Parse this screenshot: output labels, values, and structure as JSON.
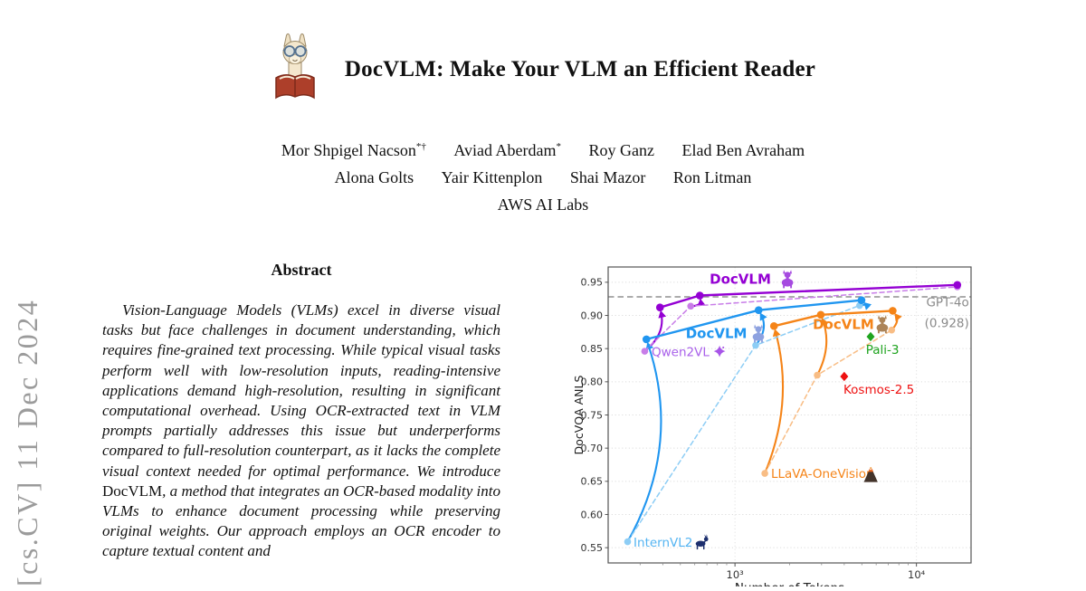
{
  "stamp": {
    "text": "[cs.CV] 11 Dec 2024"
  },
  "header": {
    "title": "DocVLM: Make Your VLM an Efficient Reader",
    "icon": "llama-reading-book"
  },
  "authors": {
    "line1": [
      {
        "name": "Mor Shpigel Nacson",
        "sup": "*†"
      },
      {
        "name": "Aviad Aberdam",
        "sup": "*"
      },
      {
        "name": "Roy Ganz",
        "sup": ""
      },
      {
        "name": "Elad Ben Avraham",
        "sup": ""
      }
    ],
    "line2": [
      {
        "name": "Alona Golts"
      },
      {
        "name": "Yair Kittenplon"
      },
      {
        "name": "Shai Mazor"
      },
      {
        "name": "Ron Litman"
      }
    ],
    "affiliation": "AWS AI Labs"
  },
  "abstract": {
    "heading": "Abstract",
    "body_pre": "Vision-Language Models (VLMs) excel in diverse visual tasks but face challenges in document understanding, which requires fine-grained text processing. While typical visual tasks perform well with low-resolution inputs, reading-intensive applications demand high-resolution, resulting in significant computational overhead. Using OCR-extracted text in VLM prompts partially addresses this issue but underperforms compared to full-resolution counterpart, as it lacks the complete visual context needed for optimal performance. We introduce ",
    "docvlm_word": "DocVLM",
    "body_post": ", a method that integrates an OCR-based modality into VLMs to enhance document processing while preserving original weights. Our approach employs an OCR encoder to capture textual content and"
  },
  "chart_data": {
    "type": "line",
    "xlabel": "Number of Tokens",
    "ylabel": "DocVQA ANLS",
    "xscale": "log",
    "xlim": [
      200,
      20000
    ],
    "ylim": [
      0.527,
      0.973
    ],
    "yticks": [
      0.55,
      0.6,
      0.65,
      0.7,
      0.75,
      0.8,
      0.85,
      0.9,
      0.95
    ],
    "xticks": [
      {
        "v": 1000,
        "label": "10³"
      },
      {
        "v": 10000,
        "label": "10⁴"
      }
    ],
    "minor_xticks": [
      300,
      400,
      500,
      600,
      700,
      800,
      900,
      2000,
      3000,
      4000,
      5000,
      6000,
      7000,
      8000,
      9000
    ],
    "grid": true,
    "hline": {
      "y": 0.928,
      "color": "#909090"
    },
    "series": [
      {
        "name": "Qwen2VL",
        "color": "#c87de8",
        "style": "dashed",
        "x": [
          318,
          570,
          16800
        ],
        "y": [
          0.846,
          0.914,
          0.943
        ]
      },
      {
        "name": "InternVL2",
        "color": "#8dcdf5",
        "style": "dashed",
        "x": [
          256,
          1300,
          4860
        ],
        "y": [
          0.559,
          0.855,
          0.915
        ]
      },
      {
        "name": "LLaVA-OneVision",
        "color": "#f8bd85",
        "style": "dashed",
        "x": [
          1460,
          2840,
          7300
        ],
        "y": [
          0.662,
          0.81,
          0.878
        ]
      },
      {
        "name": "DocVLM-Qwen2VL",
        "color": "#9400d3",
        "style": "solid",
        "x": [
          386,
          640,
          16800
        ],
        "y": [
          0.912,
          0.93,
          0.946
        ]
      },
      {
        "name": "DocVLM-InternVL2",
        "color": "#2096f0",
        "style": "solid",
        "x": [
          325,
          1350,
          4980
        ],
        "y": [
          0.864,
          0.908,
          0.923
        ]
      },
      {
        "name": "DocVLM-LLaVA-OneVision",
        "color": "#f58418",
        "style": "solid",
        "x": [
          1640,
          2970,
          7400
        ],
        "y": [
          0.884,
          0.901,
          0.907
        ]
      }
    ],
    "points": [
      {
        "name": "Pali-3",
        "x": 5590,
        "y": 0.868,
        "color": "#1fa41f",
        "marker": "diamond"
      },
      {
        "name": "Kosmos-2.5",
        "x": 4000,
        "y": 0.808,
        "color": "#ee1111",
        "marker": "diamond"
      }
    ],
    "arrows": [
      {
        "x1": 318,
        "y1": 0.846,
        "x2": 386,
        "y2": 0.912,
        "color": "#9400d3",
        "bow": 16
      },
      {
        "x1": 570,
        "y1": 0.914,
        "x2": 640,
        "y2": 0.93,
        "color": "#9400d3",
        "bow": 9
      },
      {
        "x1": 256,
        "y1": 0.559,
        "x2": 325,
        "y2": 0.864,
        "color": "#2096f0",
        "bow": 50
      },
      {
        "x1": 1300,
        "y1": 0.855,
        "x2": 1350,
        "y2": 0.908,
        "color": "#2096f0",
        "bow": 13
      },
      {
        "x1": 4860,
        "y1": 0.915,
        "x2": 4980,
        "y2": 0.923,
        "color": "#2096f0",
        "bow": 7
      },
      {
        "x1": 1460,
        "y1": 0.662,
        "x2": 1640,
        "y2": 0.884,
        "color": "#f58418",
        "bow": 28
      },
      {
        "x1": 2840,
        "y1": 0.81,
        "x2": 2970,
        "y2": 0.901,
        "color": "#f58418",
        "bow": 15
      },
      {
        "x1": 7300,
        "y1": 0.878,
        "x2": 7400,
        "y2": 0.907,
        "color": "#f58418",
        "bow": 9
      }
    ],
    "annotations": [
      {
        "text": "DocVLM",
        "x": 1070,
        "y": 0.955,
        "color": "#9400d3",
        "bold": true,
        "size": 15,
        "anchor": "middle"
      },
      {
        "text": "DocVLM",
        "x": 790,
        "y": 0.873,
        "color": "#2096f0",
        "bold": true,
        "size": 15,
        "anchor": "middle"
      },
      {
        "text": "DocVLM",
        "x": 3960,
        "y": 0.887,
        "color": "#f58418",
        "bold": true,
        "size": 15,
        "anchor": "middle"
      },
      {
        "text": "Qwen2VL",
        "x": 347,
        "y": 0.845,
        "color": "#a960ea",
        "bold": false,
        "size": 13.5,
        "anchor": "start"
      },
      {
        "text": "InternVL2",
        "x": 276,
        "y": 0.558,
        "color": "#54b4f2",
        "bold": false,
        "size": 13.5,
        "anchor": "start"
      },
      {
        "text": "LLaVA-OneVision",
        "x": 1580,
        "y": 0.662,
        "color": "#f58418",
        "bold": false,
        "size": 13.5,
        "anchor": "start"
      },
      {
        "text": "Kosmos-2.5",
        "x": 3960,
        "y": 0.789,
        "color": "#ee1111",
        "bold": false,
        "size": 13.5,
        "anchor": "start"
      },
      {
        "text": "Pali-3",
        "x": 6500,
        "y": 0.849,
        "color": "#1fa41f",
        "bold": false,
        "size": 13.5,
        "anchor": "middle"
      },
      {
        "text": "GPT-4o",
        "x": 19500,
        "y": 0.92,
        "color": "#8a8a8a",
        "bold": false,
        "size": 13.5,
        "anchor": "end"
      },
      {
        "text": "(0.928)",
        "x": 19500,
        "y": 0.889,
        "color": "#8a8a8a",
        "bold": false,
        "size": 13.5,
        "anchor": "end"
      }
    ],
    "icons": [
      {
        "type": "llama",
        "x": 1945,
        "y": 0.955,
        "color": "#a64ae0",
        "size": 21
      },
      {
        "type": "llama",
        "x": 1345,
        "y": 0.873,
        "color": "#8ea2e0",
        "size": 21
      },
      {
        "type": "llama",
        "x": 6480,
        "y": 0.887,
        "color": "#ad8458",
        "size": 21
      },
      {
        "type": "swirl",
        "x": 822,
        "y": 0.846,
        "color": "#a855e8",
        "size": 15
      },
      {
        "type": "deer",
        "x": 653,
        "y": 0.559,
        "color": "#1c2f6e",
        "size": 18
      },
      {
        "type": "volcano",
        "x": 5600,
        "y": 0.66,
        "color": "#3d3028",
        "size": 18
      }
    ]
  }
}
